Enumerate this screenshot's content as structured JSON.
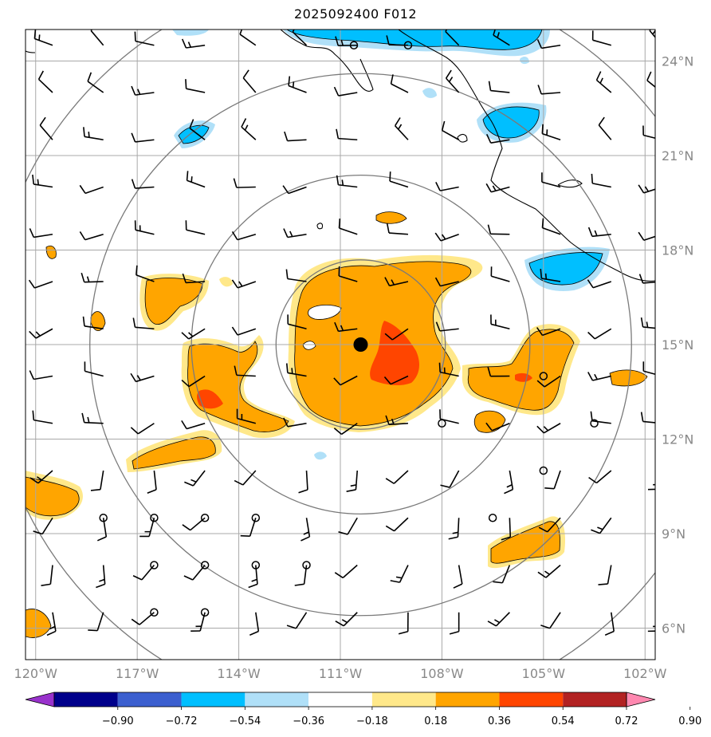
{
  "title": "2025092400 F012",
  "map": {
    "lon_range": [
      -120.3,
      -101.7
    ],
    "lat_range": [
      5.0,
      25.0
    ],
    "lon_ticks": [
      -120,
      -117,
      -114,
      -111,
      -108,
      -105,
      -102
    ],
    "lon_tick_labels": [
      "120°W",
      "117°W",
      "114°W",
      "111°W",
      "108°W",
      "105°W",
      "102°W"
    ],
    "lat_ticks": [
      6,
      9,
      12,
      15,
      18,
      21,
      24
    ],
    "lat_tick_labels": [
      "6°N",
      "9°N",
      "12°N",
      "15°N",
      "18°N",
      "21°N",
      "24°N"
    ],
    "storm_center": {
      "lon": -110.4,
      "lat": 15.0
    },
    "range_rings_deg": [
      2.5,
      5.0,
      8.0,
      11.0
    ],
    "gridlines": true,
    "colors": {
      "grid": "#a8a8a8",
      "ring": "#7a7a7a",
      "coast": "#000000",
      "barb": "#000000"
    }
  },
  "colorbar": {
    "levels": [
      "−0.90",
      "−0.72",
      "−0.54",
      "−0.36",
      "−0.18",
      "0.18",
      "0.36",
      "0.54",
      "0.72",
      "0.90"
    ],
    "colors": [
      "#9932cc",
      "#00008b",
      "#3b5fcf",
      "#00bfff",
      "#b0e0f8",
      "#ffffff",
      "#ffe88a",
      "#ffa500",
      "#ff4500",
      "#b22222",
      "#ff88b0"
    ],
    "extend": "both"
  },
  "features": {
    "positive_blobs": [
      {
        "name": "central-core",
        "lon": -109.6,
        "lat": 15.3,
        "level": "0.54"
      },
      {
        "name": "central-peak",
        "lon": -108.6,
        "lat": 14.6,
        "level": "0.72"
      },
      {
        "name": "west-band",
        "lon": -113.8,
        "lat": 13.8,
        "level": "0.54"
      },
      {
        "name": "east-band",
        "lon": -104.4,
        "lat": 14.0,
        "level": "0.54"
      },
      {
        "name": "northeast-arm",
        "lon": -107.0,
        "lat": 16.9,
        "level": "0.54"
      },
      {
        "name": "southeast-patch",
        "lon": -104.2,
        "lat": 8.6,
        "level": "0.54"
      },
      {
        "name": "southwest-patch",
        "lon": -119.6,
        "lat": 10.2,
        "level": "0.54"
      }
    ],
    "negative_blobs": [
      {
        "name": "north-coast",
        "lon": -108.5,
        "lat": 24.6,
        "level": "−0.54"
      },
      {
        "name": "gulf-patch",
        "lon": -104.6,
        "lat": 22.1,
        "level": "−0.54"
      },
      {
        "name": "east-coast",
        "lon": -103.6,
        "lat": 17.1,
        "level": "−0.54"
      },
      {
        "name": "northwest-patch",
        "lon": -114.7,
        "lat": 21.8,
        "level": "−0.54"
      }
    ]
  }
}
